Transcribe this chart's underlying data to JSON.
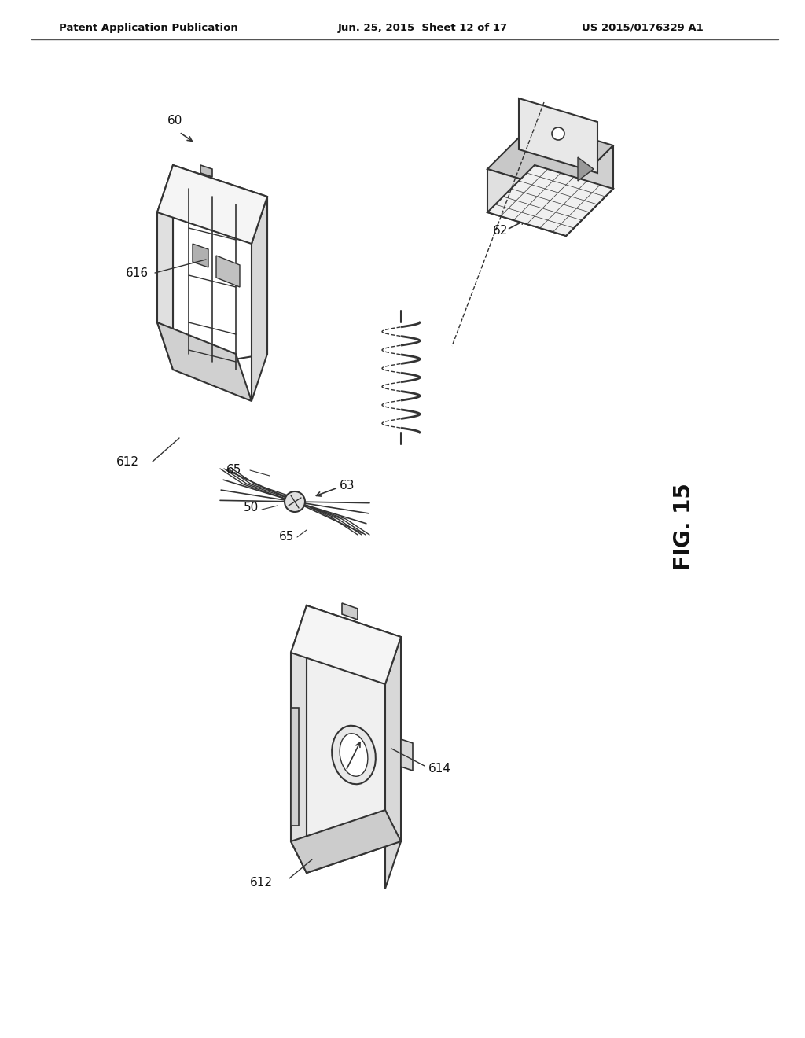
{
  "bg_color": "#ffffff",
  "header_left": "Patent Application Publication",
  "header_mid": "Jun. 25, 2015  Sheet 12 of 17",
  "header_right": "US 2015/0176329 A1",
  "fig_label": "FIG. 15",
  "label_60": "60",
  "label_62": "62",
  "label_63": "63",
  "label_65a": "65",
  "label_65b": "65",
  "label_50": "50",
  "label_612a": "612",
  "label_612b": "612",
  "label_614": "614",
  "label_616": "616",
  "line_color": "#333333",
  "text_color": "#111111"
}
